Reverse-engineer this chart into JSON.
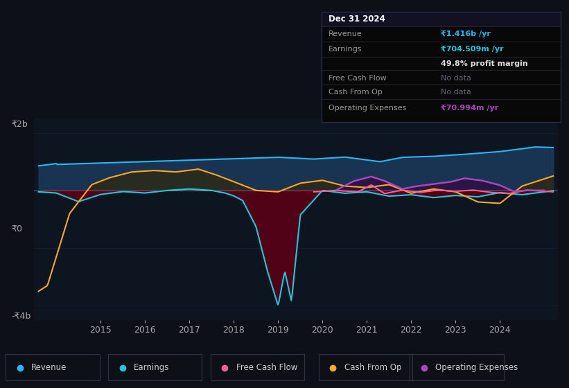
{
  "bg_color": "#0d1117",
  "plot_bg_color": "#0d1520",
  "grid_color": "#1a2535",
  "zero_line_color": "#8888aa",
  "ylim": [
    -4500000000,
    2500000000
  ],
  "xlim": [
    2013.5,
    2025.3
  ],
  "revenue_color": "#29b6f6",
  "revenue_fill_color": "#1a3a5c",
  "earnings_color": "#26c6da",
  "earnings_fill_below_color": "#4a0010",
  "earnings_fill_above_color": "#1a3a5c",
  "fcf_color": "#f06292",
  "cashfromop_color": "#ffa726",
  "cashfromop_fill_color": "#3a3520",
  "opex_color": "#ab47bc",
  "opex_fill_color": "#2a1040",
  "info_box_bg": "#080808",
  "info_box_border": "#222233",
  "title_text": "Dec 31 2024",
  "revenue_label": "Revenue",
  "revenue_value": "₹1.416b /yr",
  "earnings_label": "Earnings",
  "earnings_value": "₹704.509m /yr",
  "profit_margin": "49.8% profit margin",
  "fcf_label": "Free Cash Flow",
  "fcf_value": "No data",
  "cashop_label": "Cash From Op",
  "cashop_value": "No data",
  "opex_label": "Operating Expenses",
  "opex_value": "₹70.994m /yr",
  "legend_items": [
    "Revenue",
    "Earnings",
    "Free Cash Flow",
    "Cash From Op",
    "Operating Expenses"
  ],
  "legend_colors": [
    "#29b6f6",
    "#26c6da",
    "#f06292",
    "#ffa726",
    "#ab47bc"
  ]
}
